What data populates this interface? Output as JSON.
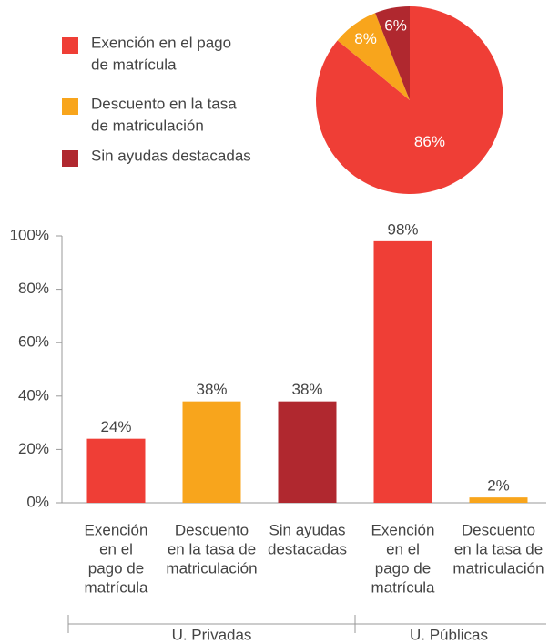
{
  "chart_data": [
    {
      "type": "pie",
      "categories": [
        [
          "Exención en el pago",
          "de matrícula"
        ],
        [
          "Descuento en la tasa",
          "de matriculación"
        ],
        [
          "Sin ayudas destacadas"
        ]
      ],
      "values": [
        86,
        8,
        6
      ],
      "value_labels": [
        "86%",
        "8%",
        "6%"
      ],
      "colors": [
        "#ef3e36",
        "#f8a51c",
        "#b0282f"
      ]
    },
    {
      "type": "bar",
      "categories": [
        [
          "Exención",
          "en el",
          "pago de",
          "matrícula"
        ],
        [
          "Descuento",
          "en la tasa de",
          "matriculación"
        ],
        [
          "Sin ayudas",
          "destacadas"
        ],
        [
          "Exención",
          "en el",
          "pago de",
          "matrícula"
        ],
        [
          "Descuento",
          "en la tasa de",
          "matriculación"
        ]
      ],
      "values": [
        24,
        38,
        38,
        98,
        2
      ],
      "value_labels": [
        "24%",
        "38%",
        "38%",
        "98%",
        "2%"
      ],
      "colors": [
        "#ef3e36",
        "#f8a51c",
        "#b0282f",
        "#ef3e36",
        "#f8a51c"
      ],
      "groups": [
        "U. Privadas",
        "U. Públicas"
      ],
      "ylim": [
        0,
        100
      ],
      "yticks": [
        {
          "value": 0,
          "label": "0%"
        },
        {
          "value": 20,
          "label": "20%"
        },
        {
          "value": 40,
          "label": "40%"
        },
        {
          "value": 60,
          "label": "60%"
        },
        {
          "value": 80,
          "label": "80%"
        },
        {
          "value": 100,
          "label": "100%"
        }
      ]
    }
  ]
}
